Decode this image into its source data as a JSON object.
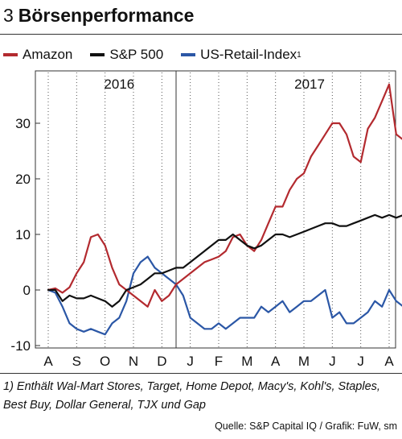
{
  "header": {
    "number": "3",
    "title": "Börsenperformance"
  },
  "chart_data": {
    "type": "line",
    "title": "Börsenperformance",
    "xlabel": "",
    "ylabel": "",
    "ylim": [
      -10,
      40
    ],
    "yticks": [
      -10,
      0,
      10,
      20,
      30
    ],
    "month_labels": [
      "A",
      "S",
      "O",
      "N",
      "D",
      "J",
      "F",
      "M",
      "A",
      "M",
      "J",
      "J",
      "A"
    ],
    "year_labels": [
      "2016",
      "2017"
    ],
    "legend_position": "top",
    "grid": "dotted vertical month lines",
    "x": [
      0,
      0.25,
      0.5,
      0.75,
      1,
      1.25,
      1.5,
      1.75,
      2,
      2.25,
      2.5,
      2.75,
      3,
      3.25,
      3.5,
      3.75,
      4,
      4.25,
      4.5,
      4.75,
      5,
      5.25,
      5.5,
      5.75,
      6,
      6.25,
      6.5,
      6.75,
      7,
      7.25,
      7.5,
      7.75,
      8,
      8.25,
      8.5,
      8.75,
      9,
      9.25,
      9.5,
      9.75,
      10,
      10.25,
      10.5,
      10.75,
      11,
      11.25,
      11.5,
      11.75,
      12,
      12.25,
      12.5
    ],
    "series": [
      {
        "name": "Amazon",
        "color": "#b32a2f",
        "values": [
          0,
          0.3,
          -0.5,
          0.5,
          3,
          5,
          9.5,
          10,
          8,
          4,
          1,
          0,
          -1,
          -2,
          -3,
          0,
          -2,
          -1,
          1,
          2,
          3,
          4,
          5,
          5.5,
          6,
          7,
          9.5,
          10,
          8,
          7,
          9,
          12,
          15,
          15,
          18,
          20,
          21,
          24,
          26,
          28,
          30,
          30,
          28,
          24,
          23,
          29,
          31,
          34,
          37,
          28,
          27
        ]
      },
      {
        "name": "S&P 500",
        "color": "#111111",
        "values": [
          0,
          0,
          -2,
          -1,
          -1.5,
          -1.5,
          -1,
          -1.5,
          -2,
          -3,
          -2,
          0,
          0.5,
          1,
          2,
          3,
          3,
          3.5,
          4,
          4,
          5,
          6,
          7,
          8,
          9,
          9,
          10,
          9,
          8,
          7.5,
          8,
          9,
          10,
          10,
          9.5,
          10,
          10.5,
          11,
          11.5,
          12,
          12,
          11.5,
          11.5,
          12,
          12.5,
          13,
          13.5,
          13,
          13.5,
          13,
          13.5
        ]
      },
      {
        "name": "US-Retail-Index",
        "color": "#2b57a6",
        "values": [
          0,
          -0.5,
          -3,
          -6,
          -7,
          -7.5,
          -7,
          -7.5,
          -8,
          -6,
          -5,
          -2,
          3,
          5,
          6,
          4,
          3,
          2,
          1,
          -1,
          -5,
          -6,
          -7,
          -7,
          -6,
          -7,
          -6,
          -5,
          -5,
          -5,
          -3,
          -4,
          -3,
          -2,
          -4,
          -3,
          -2,
          -2,
          -1,
          0,
          -5,
          -4,
          -6,
          -6,
          -5,
          -4,
          -2,
          -3,
          0,
          -2,
          -3
        ]
      }
    ]
  },
  "legend": {
    "amazon": "Amazon",
    "sp500": "S&P 500",
    "retail": "US-Retail-Index",
    "retail_sup": "1"
  },
  "footnote": "1) Enthält Wal-Mart Stores, Target, Home Depot, Macy's, Kohl's, Staples, Best Buy, Dollar General, TJX und Gap",
  "source": "Quelle: S&P Capital IQ / Grafik: FuW, sm"
}
